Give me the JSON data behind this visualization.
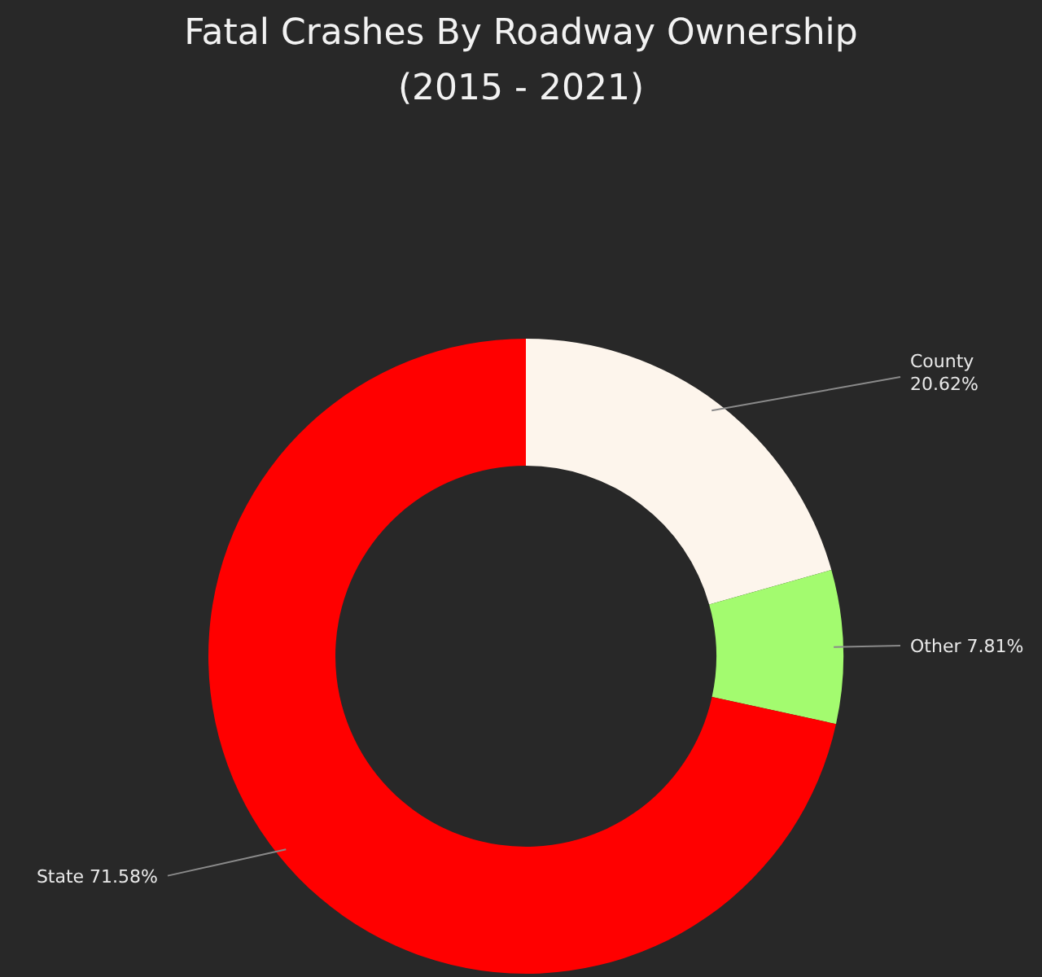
{
  "chart_data": {
    "type": "donut",
    "title": "Fatal Crashes By Roadway Ownership\n(2015 - 2021)",
    "categories": [
      "County",
      "Other",
      "State"
    ],
    "values": [
      20.62,
      7.81,
      71.58
    ],
    "value_labels": [
      "20.62%",
      "7.81%",
      "71.58%"
    ],
    "colors": [
      "#fdf5ec",
      "#a3fb6f",
      "#ff0000"
    ],
    "legend": false
  }
}
